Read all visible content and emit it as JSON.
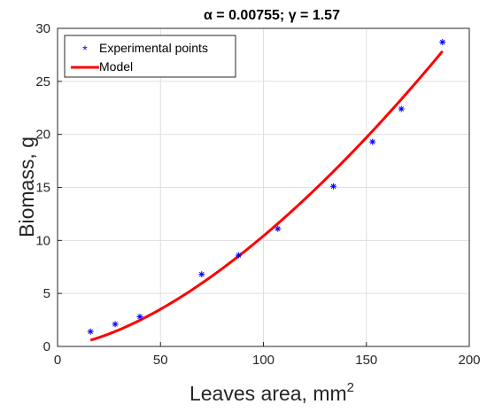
{
  "chart_data": {
    "type": "scatter",
    "title": "α = 0.00755; γ = 1.57",
    "xlabel": "Leaves area, mm",
    "xlabel_superscript": "2",
    "ylabel": "Biomass, g",
    "xlim": [
      0,
      200
    ],
    "ylim": [
      0,
      30
    ],
    "xticks": [
      "0",
      "50",
      "100",
      "150",
      "200"
    ],
    "yticks": [
      "0",
      "5",
      "10",
      "15",
      "20",
      "25",
      "30"
    ],
    "grid": true,
    "legend_position": "top-left",
    "series": [
      {
        "name": "Experimental points",
        "kind": "scatter",
        "marker": "*",
        "color": "#0000ff",
        "x": [
          16,
          28,
          40,
          70,
          88,
          107,
          134,
          153,
          167,
          187
        ],
        "y": [
          1.4,
          2.1,
          2.8,
          6.8,
          8.6,
          11.1,
          15.1,
          19.3,
          22.4,
          28.7
        ]
      },
      {
        "name": "Model",
        "kind": "line",
        "color": "#ff0000",
        "alpha": 0.00755,
        "gamma": 1.57,
        "x_range": [
          16,
          187
        ]
      }
    ]
  }
}
